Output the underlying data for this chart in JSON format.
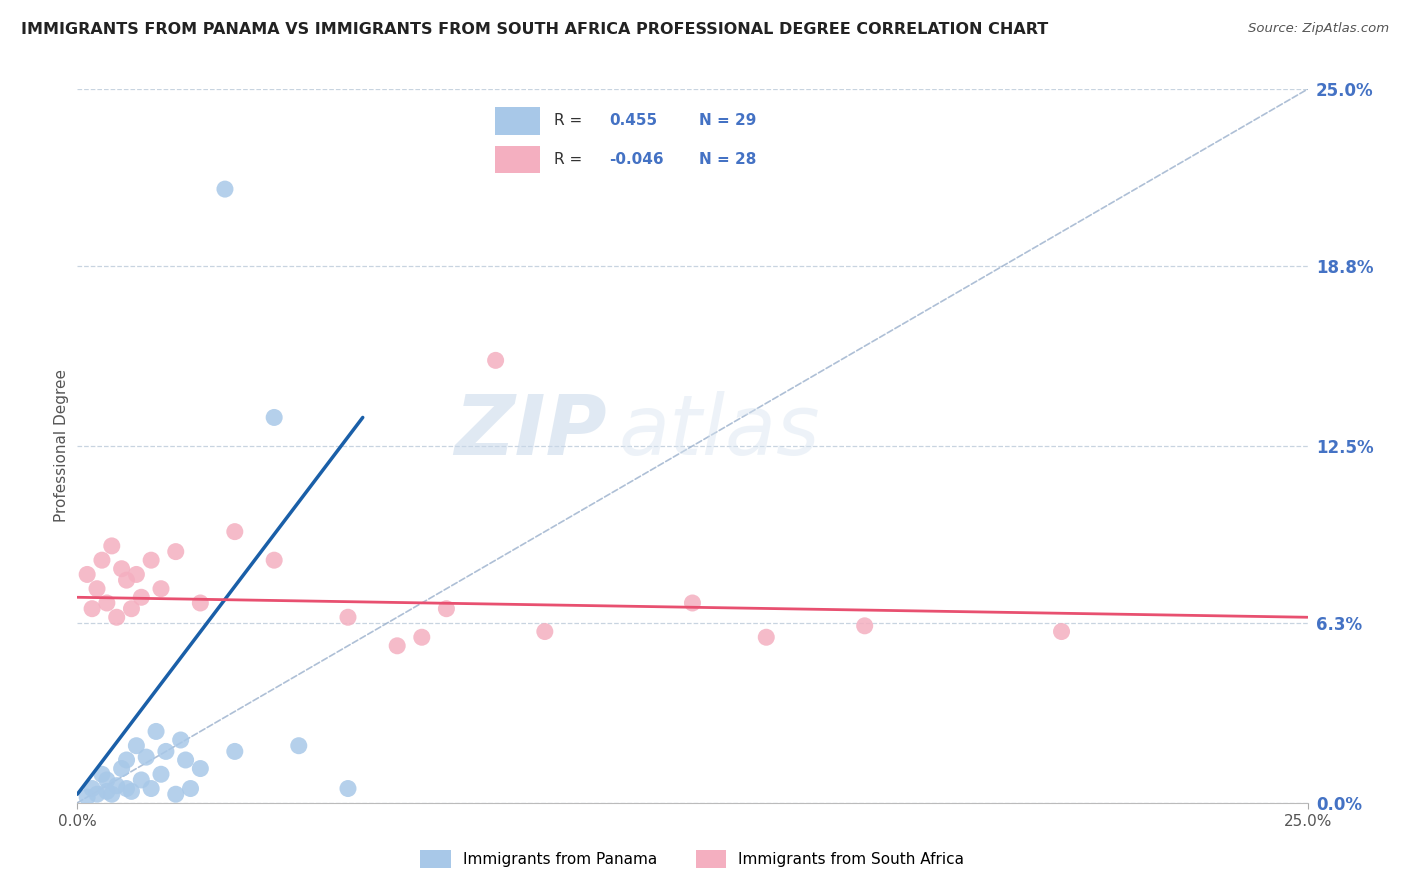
{
  "title": "IMMIGRANTS FROM PANAMA VS IMMIGRANTS FROM SOUTH AFRICA PROFESSIONAL DEGREE CORRELATION CHART",
  "source": "Source: ZipAtlas.com",
  "ylabel": "Professional Degree",
  "ytick_values": [
    0.0,
    6.3,
    12.5,
    18.8,
    25.0
  ],
  "xlim": [
    0.0,
    25.0
  ],
  "ylim": [
    0.0,
    25.0
  ],
  "r_panama": "0.455",
  "n_panama": 29,
  "r_south_africa": "-0.046",
  "n_south_africa": 28,
  "color_panama": "#a8c8e8",
  "color_south_africa": "#f4afc0",
  "line_color_panama": "#1a5fa8",
  "line_color_south_africa": "#e85070",
  "diagonal_color": "#9ab0cc",
  "watermark_zip": "ZIP",
  "watermark_atlas": "atlas",
  "panama_points": [
    [
      0.2,
      0.2
    ],
    [
      0.3,
      0.5
    ],
    [
      0.4,
      0.3
    ],
    [
      0.5,
      1.0
    ],
    [
      0.6,
      0.4
    ],
    [
      0.6,
      0.8
    ],
    [
      0.7,
      0.3
    ],
    [
      0.8,
      0.6
    ],
    [
      0.9,
      1.2
    ],
    [
      1.0,
      0.5
    ],
    [
      1.0,
      1.5
    ],
    [
      1.1,
      0.4
    ],
    [
      1.2,
      2.0
    ],
    [
      1.3,
      0.8
    ],
    [
      1.4,
      1.6
    ],
    [
      1.5,
      0.5
    ],
    [
      1.6,
      2.5
    ],
    [
      1.7,
      1.0
    ],
    [
      1.8,
      1.8
    ],
    [
      2.0,
      0.3
    ],
    [
      2.1,
      2.2
    ],
    [
      2.2,
      1.5
    ],
    [
      2.3,
      0.5
    ],
    [
      2.5,
      1.2
    ],
    [
      3.0,
      21.5
    ],
    [
      3.2,
      1.8
    ],
    [
      4.0,
      13.5
    ],
    [
      4.5,
      2.0
    ],
    [
      5.5,
      0.5
    ]
  ],
  "south_africa_points": [
    [
      0.2,
      8.0
    ],
    [
      0.3,
      6.8
    ],
    [
      0.4,
      7.5
    ],
    [
      0.5,
      8.5
    ],
    [
      0.6,
      7.0
    ],
    [
      0.7,
      9.0
    ],
    [
      0.8,
      6.5
    ],
    [
      0.9,
      8.2
    ],
    [
      1.0,
      7.8
    ],
    [
      1.1,
      6.8
    ],
    [
      1.2,
      8.0
    ],
    [
      1.3,
      7.2
    ],
    [
      1.5,
      8.5
    ],
    [
      1.7,
      7.5
    ],
    [
      2.0,
      8.8
    ],
    [
      2.5,
      7.0
    ],
    [
      3.2,
      9.5
    ],
    [
      4.0,
      8.5
    ],
    [
      5.5,
      6.5
    ],
    [
      6.5,
      5.5
    ],
    [
      7.0,
      5.8
    ],
    [
      7.5,
      6.8
    ],
    [
      8.5,
      15.5
    ],
    [
      9.5,
      6.0
    ],
    [
      12.5,
      7.0
    ],
    [
      14.0,
      5.8
    ],
    [
      16.0,
      6.2
    ],
    [
      20.0,
      6.0
    ]
  ],
  "blue_line_x": [
    0.0,
    5.8
  ],
  "blue_line_y": [
    0.3,
    13.5
  ],
  "pink_line_x": [
    0.0,
    25.0
  ],
  "pink_line_y": [
    7.2,
    6.5
  ]
}
